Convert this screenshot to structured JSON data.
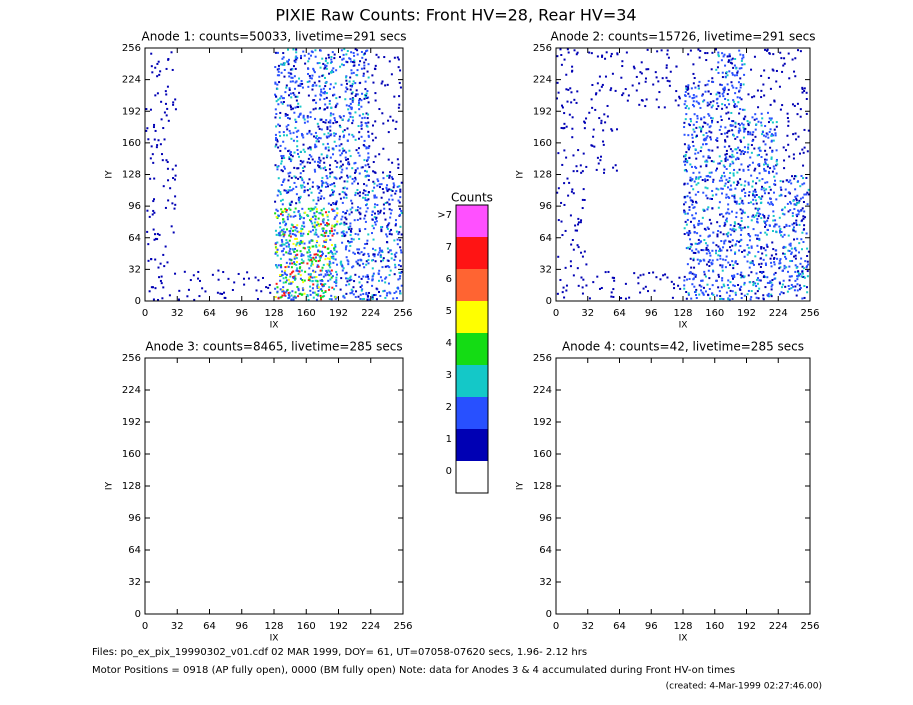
{
  "title": "PIXIE Raw Counts:  Front HV=28, Rear HV=34",
  "colorbar": {
    "title": "Counts",
    "labels": [
      "0",
      "1",
      "2",
      "3",
      "4",
      "5",
      "6",
      "7",
      ">7"
    ],
    "colors": [
      "#ffffff",
      "#0000b4",
      "#2850ff",
      "#14c8c8",
      "#14dc14",
      "#ffff00",
      "#ff6432",
      "#ff1414",
      "#ff50ff"
    ]
  },
  "footer": {
    "line1": "Files: po_ex_pix_19990302_v01.cdf    02 MAR 1999, DOY= 61, UT=07058-07620 secs,  1.96- 2.12 hrs",
    "line2": "Motor Positions = 0918 (AP fully open), 0000 (BM fully open)    Note: data for Anodes 3 & 4 accumulated during Front HV-on times",
    "created": "(created:  4-Mar-1999 02:27:46.00)"
  },
  "chart_data": [
    {
      "type": "heatmap",
      "title": "Anode 1: counts=50033, livetime=291 secs",
      "xlabel": "IX",
      "ylabel": "IY",
      "xlim": [
        0,
        256
      ],
      "ylim": [
        0,
        256
      ],
      "xticks": [
        0,
        32,
        64,
        96,
        128,
        160,
        192,
        224,
        256
      ],
      "yticks": [
        0,
        32,
        64,
        96,
        128,
        160,
        192,
        224,
        256
      ],
      "levels": [
        [
          1,
          0,
          0,
          0,
          2,
          2,
          2,
          1
        ],
        [
          1,
          0,
          0,
          0,
          2,
          2,
          2,
          1
        ],
        [
          1,
          0,
          0,
          0,
          2,
          2,
          2,
          1
        ],
        [
          1,
          0,
          0,
          0,
          2,
          2,
          2,
          1
        ],
        [
          1,
          0,
          0,
          0,
          2,
          2,
          2,
          2
        ],
        [
          1,
          0,
          0,
          0,
          3,
          3,
          2,
          2
        ],
        [
          1,
          0,
          0,
          0,
          3,
          3,
          2,
          2
        ],
        [
          1,
          1,
          1,
          1,
          3,
          3,
          2,
          2
        ]
      ]
    },
    {
      "type": "heatmap",
      "title": "Anode 2: counts=15726, livetime=291 secs",
      "xlabel": "IX",
      "ylabel": "IY",
      "xlim": [
        0,
        256
      ],
      "ylim": [
        0,
        256
      ],
      "xticks": [
        0,
        32,
        64,
        96,
        128,
        160,
        192,
        224,
        256
      ],
      "yticks": [
        0,
        32,
        64,
        96,
        128,
        160,
        192,
        224,
        256
      ],
      "levels": [
        [
          1,
          1,
          1,
          1,
          1,
          2,
          1,
          1
        ],
        [
          1,
          1,
          1,
          1,
          2,
          2,
          1,
          1
        ],
        [
          1,
          1,
          0,
          0,
          2,
          2,
          2,
          1
        ],
        [
          1,
          1,
          0,
          0,
          2,
          2,
          2,
          1
        ],
        [
          1,
          0,
          0,
          0,
          2,
          2,
          2,
          2
        ],
        [
          1,
          0,
          0,
          0,
          2,
          2,
          2,
          2
        ],
        [
          1,
          0,
          0,
          0,
          2,
          2,
          2,
          2
        ],
        [
          1,
          1,
          1,
          1,
          2,
          2,
          2,
          2
        ]
      ]
    },
    {
      "type": "heatmap",
      "title": "Anode 3: counts=8465, livetime=285 secs",
      "xlabel": "IX",
      "ylabel": "IY",
      "xlim": [
        0,
        256
      ],
      "ylim": [
        0,
        256
      ],
      "xticks": [
        0,
        32,
        64,
        96,
        128,
        160,
        192,
        224,
        256
      ],
      "yticks": [
        0,
        32,
        64,
        96,
        128,
        160,
        192,
        224,
        256
      ]
    },
    {
      "type": "heatmap",
      "title": "Anode 4: counts=42, livetime=285 secs",
      "xlabel": "IX",
      "ylabel": "IY",
      "xlim": [
        0,
        256
      ],
      "ylim": [
        0,
        256
      ],
      "xticks": [
        0,
        32,
        64,
        96,
        128,
        160,
        192,
        224,
        256
      ],
      "yticks": [
        0,
        32,
        64,
        96,
        128,
        160,
        192,
        224,
        256
      ]
    }
  ]
}
